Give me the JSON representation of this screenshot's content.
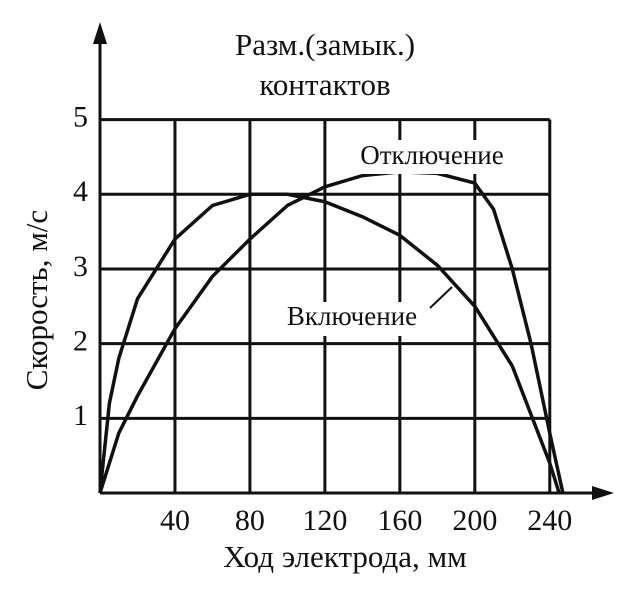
{
  "chart_data": {
    "type": "line",
    "title_lines": [
      "Разм.(замык.)",
      "контактов"
    ],
    "x_label": "Ход электрода, мм",
    "y_label": "Скорость, м/с",
    "xlim": [
      0,
      270
    ],
    "ylim": [
      0,
      6.2
    ],
    "xticks": [
      40,
      80,
      120,
      160,
      200,
      240
    ],
    "yticks": [
      1,
      2,
      3,
      4,
      5
    ],
    "grid": true,
    "series": [
      {
        "name": "Включение",
        "color": "#111111",
        "x": [
          0,
          5,
          10,
          20,
          40,
          60,
          80,
          100,
          120,
          140,
          160,
          180,
          200,
          220,
          240,
          245
        ],
        "values": [
          0,
          1.2,
          1.8,
          2.6,
          3.4,
          3.85,
          4.0,
          4.0,
          3.9,
          3.7,
          3.45,
          3.05,
          2.5,
          1.7,
          0.4,
          0
        ]
      },
      {
        "name": "Отключение",
        "color": "#111111",
        "x": [
          0,
          10,
          20,
          40,
          60,
          80,
          100,
          120,
          140,
          160,
          180,
          200,
          210,
          220,
          230,
          240,
          247
        ],
        "values": [
          0,
          0.8,
          1.3,
          2.2,
          2.9,
          3.4,
          3.85,
          4.1,
          4.25,
          4.3,
          4.28,
          4.15,
          3.8,
          3.0,
          2.0,
          0.8,
          0
        ]
      }
    ]
  }
}
